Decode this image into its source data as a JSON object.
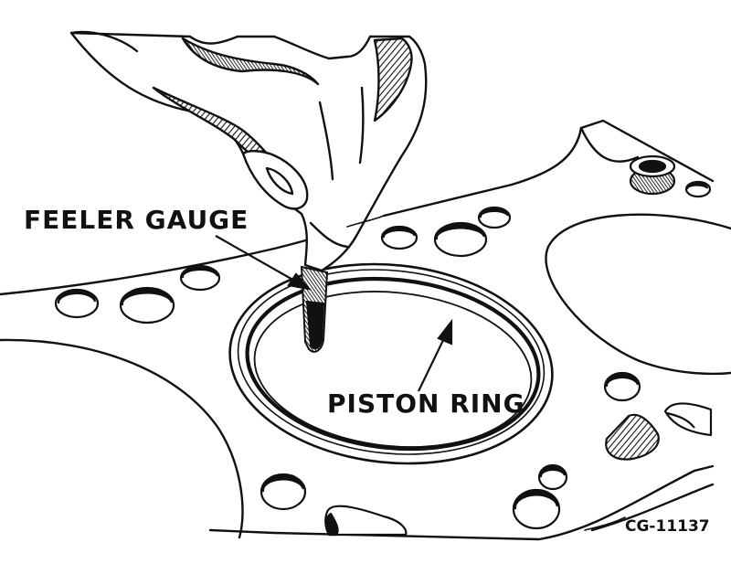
{
  "labels": {
    "feeler_gauge": "FEELER GAUGE",
    "piston_ring": "PISTON RING",
    "figure_id": "CG-11137"
  },
  "colors": {
    "ink": "#111111",
    "paper": "#ffffff"
  }
}
